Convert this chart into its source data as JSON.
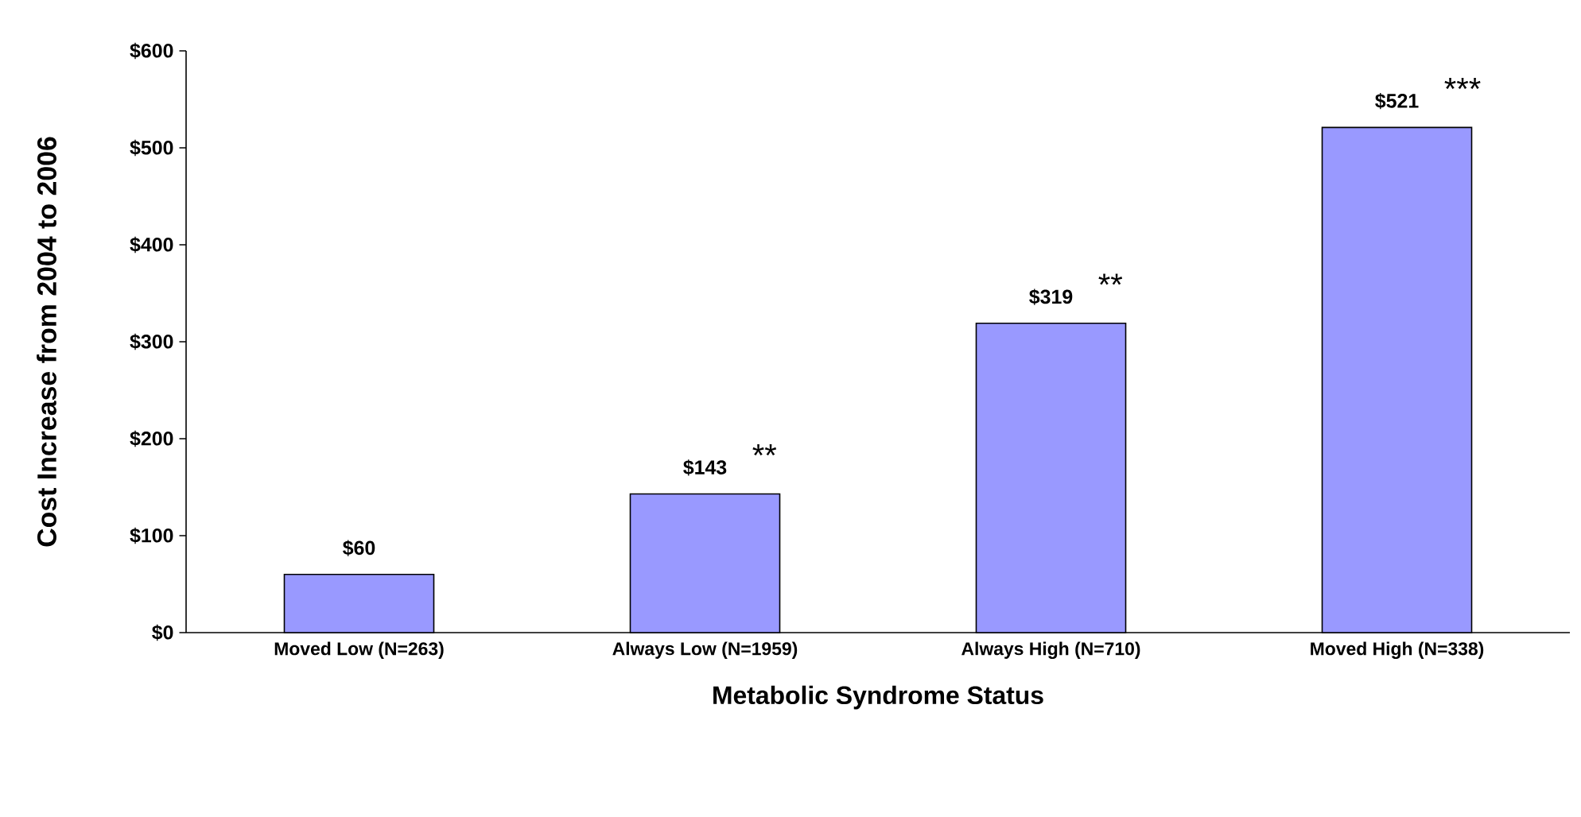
{
  "chart_data": {
    "type": "bar",
    "xlabel": "Metabolic Syndrome Status",
    "ylabel": "Cost Increase from 2004 to 2006",
    "categories": [
      "Moved Low   (N=263)",
      "Always Low (N=1959)",
      "Always High  (N=710)",
      "Moved High   (N=338)"
    ],
    "values": [
      60,
      143,
      319,
      521
    ],
    "color": "#9999ff",
    "value_labels": [
      "$60",
      "$143",
      "$319",
      "$521"
    ],
    "ylim": [
      0,
      600
    ],
    "yticks": [
      {
        "value": 0,
        "label": "$0"
      },
      {
        "value": 100,
        "label": "$100"
      },
      {
        "value": 200,
        "label": "$200"
      },
      {
        "value": 300,
        "label": "$300"
      },
      {
        "value": 400,
        "label": "$400"
      },
      {
        "value": 500,
        "label": "$500"
      },
      {
        "value": 600,
        "label": "$600"
      }
    ],
    "annotations": [
      "**",
      "**",
      "***"
    ],
    "grid": false
  }
}
